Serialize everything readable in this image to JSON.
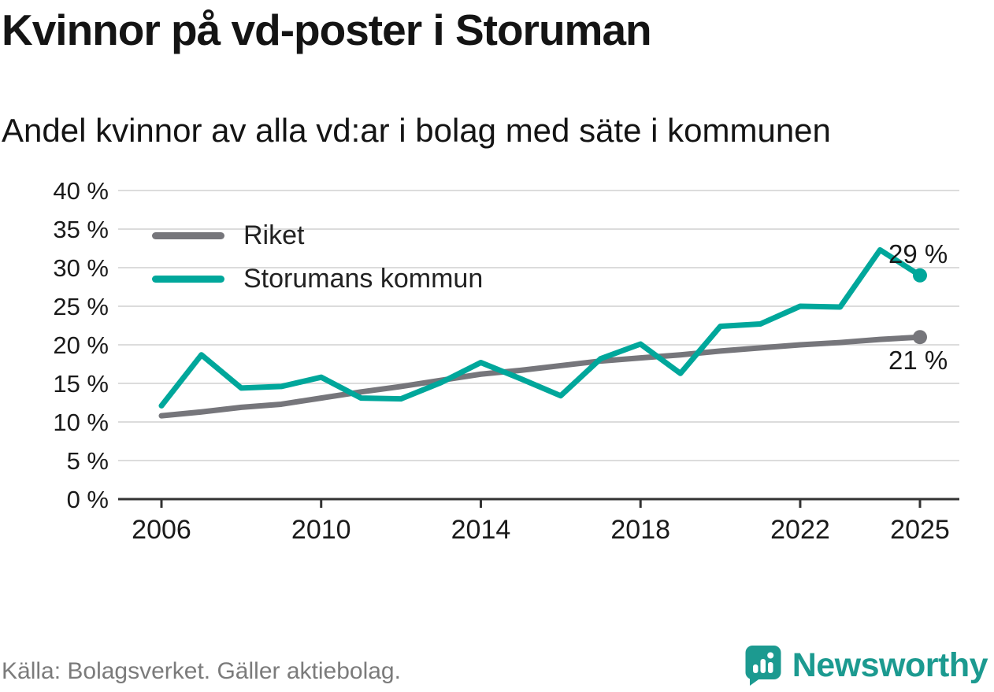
{
  "header": {
    "title": "Kvinnor på vd-poster i Storuman",
    "subtitle": "Andel kvinnor av alla vd:ar i bolag med säte i kommunen"
  },
  "footer": {
    "source": "Källa: Bolagsverket. Gäller aktiebolag.",
    "brand": "Newsworthy"
  },
  "colors": {
    "riket": "#76767b",
    "storuman": "#00a79b",
    "grid": "#dcdcdc",
    "axis": "#333333",
    "text": "#1a1a1a",
    "muted": "#7b7b7b",
    "brand": "#1c9a90"
  },
  "chart_data": {
    "type": "line",
    "title": "Kvinnor på vd-poster i Storuman",
    "subtitle": "Andel kvinnor av alla vd:ar i bolag med säte i kommunen",
    "x": [
      2006,
      2007,
      2008,
      2009,
      2010,
      2011,
      2012,
      2013,
      2014,
      2015,
      2016,
      2017,
      2018,
      2019,
      2020,
      2021,
      2022,
      2023,
      2024,
      2025
    ],
    "series": [
      {
        "name": "Riket",
        "color_key": "riket",
        "values": [
          10.8,
          11.3,
          11.9,
          12.3,
          13.1,
          13.9,
          14.6,
          15.4,
          16.2,
          16.7,
          17.3,
          17.9,
          18.3,
          18.7,
          19.2,
          19.6,
          20.0,
          20.3,
          20.7,
          21.0
        ],
        "end_label": "21 %"
      },
      {
        "name": "Storumans kommun",
        "color_key": "storuman",
        "values": [
          12.1,
          18.7,
          14.4,
          14.6,
          15.8,
          13.1,
          13.0,
          15.1,
          17.7,
          15.6,
          13.4,
          18.2,
          20.1,
          16.3,
          22.4,
          22.7,
          25.0,
          24.9,
          32.3,
          29.0
        ],
        "end_label": "29 %"
      }
    ],
    "ylim": [
      0,
      40
    ],
    "ytick_step": 5,
    "ytick_suffix": " %",
    "xticks": [
      2006,
      2010,
      2014,
      2018,
      2022,
      2025
    ],
    "grid": "horizontal",
    "legend_position": "inside-top-left"
  }
}
